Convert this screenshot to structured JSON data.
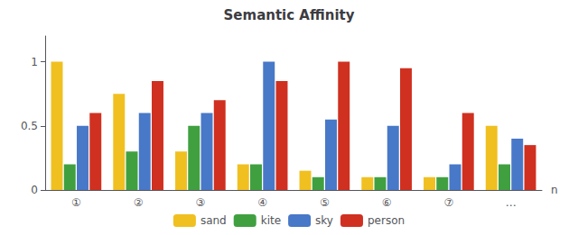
{
  "chart_data": {
    "type": "bar",
    "title": "Semantic Affinity",
    "xlabel": "n",
    "categories": [
      "①",
      "②",
      "③",
      "④",
      "⑤",
      "⑥",
      "⑦",
      "…"
    ],
    "series": [
      {
        "name": "sand",
        "color": "#f0c020",
        "values": [
          1.0,
          0.75,
          0.3,
          0.2,
          0.15,
          0.1,
          0.1,
          0.5
        ]
      },
      {
        "name": "kite",
        "color": "#40a040",
        "values": [
          0.2,
          0.3,
          0.5,
          0.2,
          0.1,
          0.1,
          0.1,
          0.2
        ]
      },
      {
        "name": "sky",
        "color": "#4878c8",
        "values": [
          0.5,
          0.6,
          0.6,
          1.0,
          0.55,
          0.5,
          0.2,
          0.4
        ]
      },
      {
        "name": "person",
        "color": "#d03020",
        "values": [
          0.6,
          0.85,
          0.7,
          0.85,
          1.0,
          0.95,
          0.6,
          0.35
        ]
      }
    ],
    "ylim": [
      0,
      1.2
    ],
    "yticks": [
      0,
      0.5,
      1
    ],
    "grid": false,
    "legend": "bottom"
  }
}
